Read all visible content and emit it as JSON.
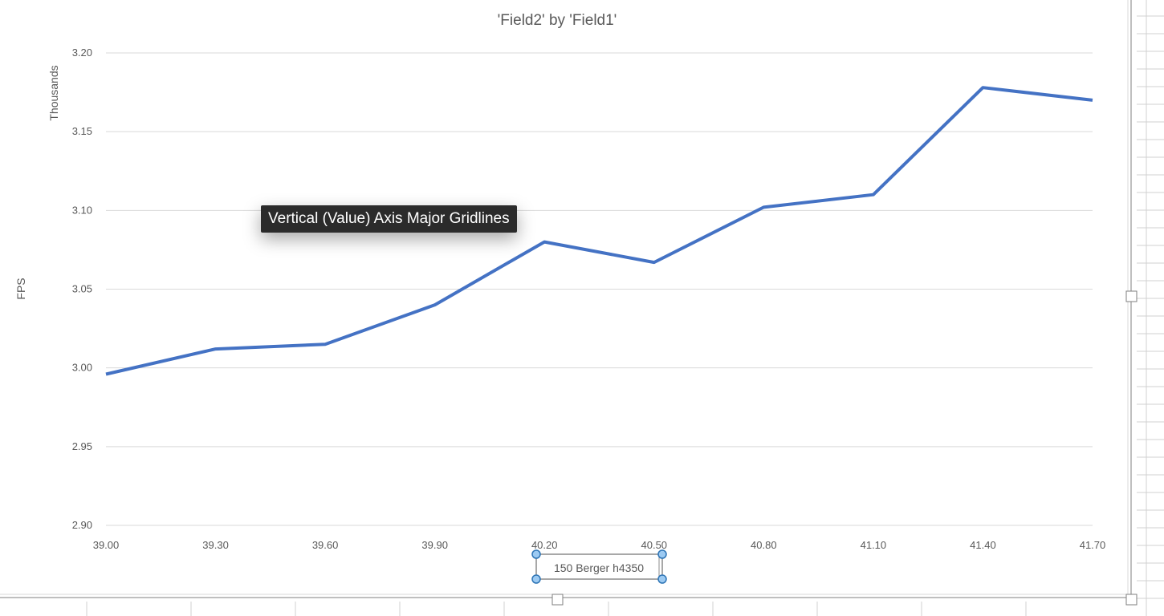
{
  "colors": {
    "series_line": "#4472c4",
    "gridline": "#d9d9d9",
    "tick_text": "#595959",
    "selection_handle_fill": "#9ccaf2",
    "selection_handle_stroke": "#2e75b6",
    "tooltip_bg": "#2b2b2b"
  },
  "tooltip": {
    "text": "Vertical (Value) Axis Major Gridlines"
  },
  "chart_data": {
    "type": "line",
    "title": "'Field2' by 'Field1'",
    "xlabel": "150 Berger h4350",
    "ylabel": "FPS",
    "y_display_units_label": "Thousands",
    "x": [
      39.0,
      39.3,
      39.6,
      39.9,
      40.2,
      40.5,
      40.8,
      41.1,
      41.4,
      41.7
    ],
    "x_tick_labels": [
      "39.00",
      "39.30",
      "39.60",
      "39.90",
      "40.20",
      "40.50",
      "40.80",
      "41.10",
      "41.40",
      "41.70"
    ],
    "series": [
      {
        "values": [
          2.996,
          3.012,
          3.015,
          3.04,
          3.08,
          3.067,
          3.102,
          3.11,
          3.178,
          3.17
        ]
      }
    ],
    "y_ticks": [
      2.9,
      2.95,
      3.0,
      3.05,
      3.1,
      3.15,
      3.2
    ],
    "y_tick_labels": [
      "2.90",
      "2.95",
      "3.00",
      "3.05",
      "3.10",
      "3.15",
      "3.20"
    ],
    "ylim": [
      2.9,
      3.2
    ],
    "xlim": [
      39.0,
      41.7
    ],
    "grid": "horizontal-major",
    "legend": "none"
  }
}
